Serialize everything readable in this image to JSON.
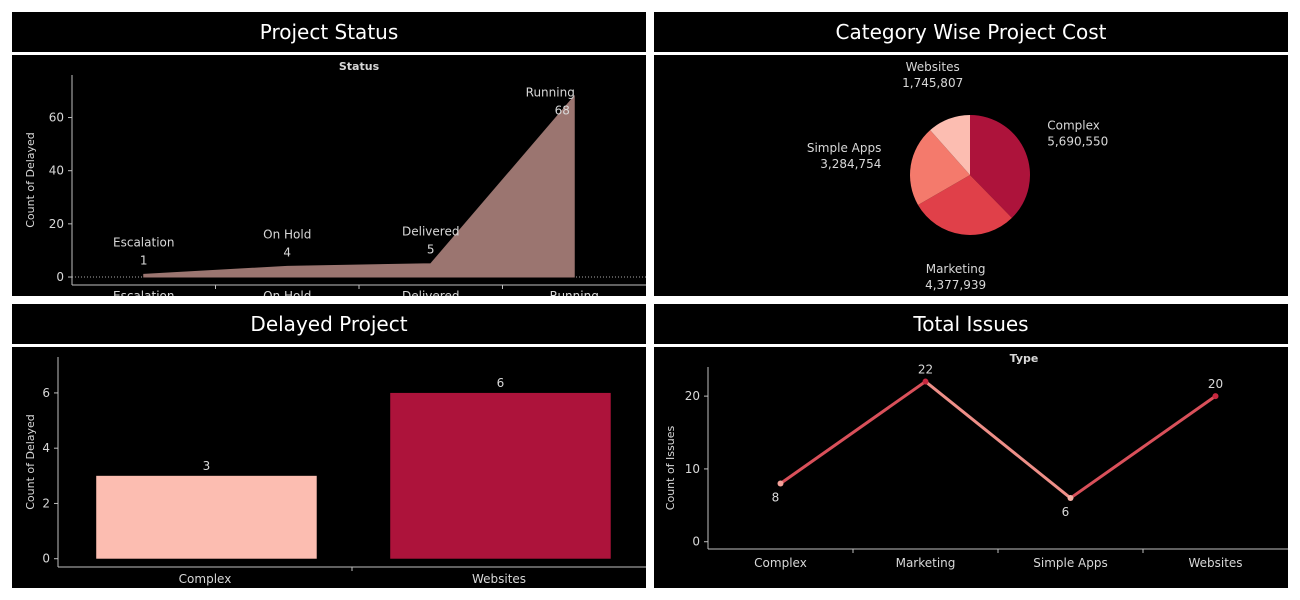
{
  "panels": {
    "status": {
      "title": "Project Status"
    },
    "cost": {
      "title": "Category Wise Project Cost"
    },
    "delayed": {
      "title": "Delayed Project"
    },
    "issues": {
      "title": "Total Issues"
    }
  },
  "chart_data": [
    {
      "id": "status",
      "type": "area",
      "title": "Status",
      "xlabel": "",
      "ylabel": "Count of Delayed",
      "categories": [
        "Escalation",
        "On Hold",
        "Delivered",
        "Running"
      ],
      "values": [
        1,
        4,
        5,
        68
      ],
      "yticks": [
        0,
        20,
        40,
        60
      ],
      "ylim": [
        -3,
        76
      ],
      "color": "#9b7570"
    },
    {
      "id": "cost",
      "type": "pie",
      "slices": [
        {
          "label": "Complex",
          "value": 5690550,
          "display": "5,690,550",
          "color": "#ad133b"
        },
        {
          "label": "Marketing",
          "value": 4377939,
          "display": "4,377,939",
          "color": "#e04049"
        },
        {
          "label": "Simple Apps",
          "value": 3284754,
          "display": "3,284,754",
          "color": "#f47a6c"
        },
        {
          "label": "Websites",
          "value": 1745807,
          "display": "1,745,807",
          "color": "#fcbdb1"
        }
      ]
    },
    {
      "id": "delayed",
      "type": "bar",
      "xlabel": "",
      "ylabel": "Count of Delayed",
      "categories": [
        "Complex",
        "Websites"
      ],
      "values": [
        3,
        6
      ],
      "colors": [
        "#fcbdb1",
        "#ad133b"
      ],
      "yticks": [
        0,
        2,
        4,
        6
      ],
      "ylim": [
        -0.3,
        7.3
      ]
    },
    {
      "id": "issues",
      "type": "line",
      "title": "Type",
      "xlabel": "",
      "ylabel": "Count of Issues",
      "categories": [
        "Complex",
        "Marketing",
        "Simple Apps",
        "Websites"
      ],
      "values": [
        8,
        22,
        6,
        20
      ],
      "colors": [
        "#f4a199",
        "#c8283f",
        "#f4b1a6",
        "#c8283f"
      ],
      "yticks": [
        0,
        10,
        20
      ],
      "ylim": [
        -1,
        24
      ]
    }
  ]
}
